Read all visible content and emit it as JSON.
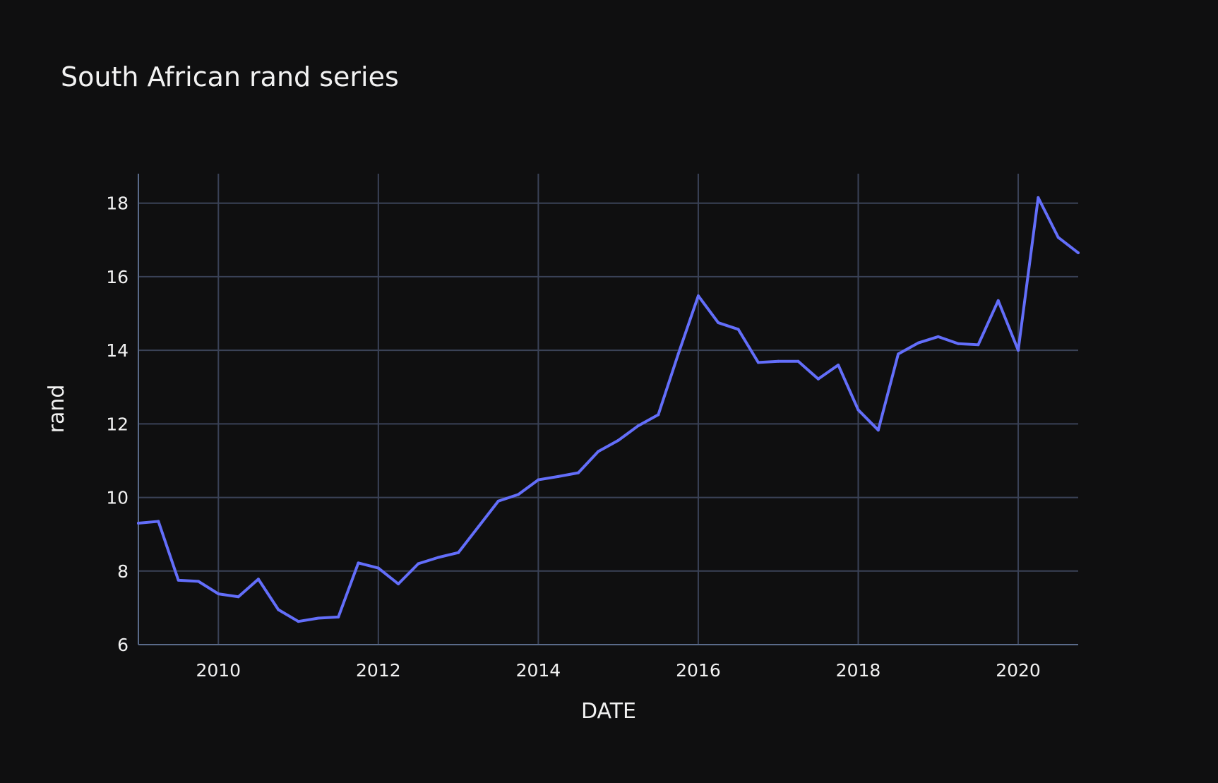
{
  "chart_data": {
    "type": "line",
    "title": "South African rand series",
    "xlabel": "DATE",
    "ylabel": "rand",
    "xlim": [
      2009.0,
      2020.75
    ],
    "ylim": [
      6,
      18.8
    ],
    "x_ticks": [
      2010,
      2012,
      2014,
      2016,
      2018,
      2020
    ],
    "y_ticks": [
      6,
      8,
      10,
      12,
      14,
      16,
      18
    ],
    "grid": true,
    "series": [
      {
        "name": "rand",
        "color": "#636efa",
        "x": [
          2009.0,
          2009.25,
          2009.5,
          2009.75,
          2010.0,
          2010.25,
          2010.5,
          2010.75,
          2011.0,
          2011.25,
          2011.5,
          2011.75,
          2012.0,
          2012.25,
          2012.5,
          2012.75,
          2013.0,
          2013.25,
          2013.5,
          2013.75,
          2014.0,
          2014.25,
          2014.5,
          2014.75,
          2015.0,
          2015.25,
          2015.5,
          2015.75,
          2016.0,
          2016.25,
          2016.5,
          2016.75,
          2017.0,
          2017.25,
          2017.5,
          2017.75,
          2018.0,
          2018.25,
          2018.5,
          2018.75,
          2019.0,
          2019.25,
          2019.5,
          2019.75,
          2020.0,
          2020.25,
          2020.5,
          2020.75
        ],
        "values": [
          9.3,
          9.35,
          7.75,
          7.72,
          7.38,
          7.3,
          7.78,
          6.95,
          6.63,
          6.72,
          6.75,
          8.22,
          8.08,
          7.65,
          8.2,
          8.37,
          8.5,
          9.2,
          9.9,
          10.08,
          10.48,
          10.57,
          10.67,
          11.25,
          11.55,
          11.95,
          12.25,
          13.9,
          15.48,
          14.75,
          14.57,
          13.67,
          13.7,
          13.7,
          13.22,
          13.6,
          12.38,
          11.83,
          13.9,
          14.2,
          14.37,
          14.18,
          14.15,
          15.35,
          14.0,
          18.15,
          17.07,
          16.65
        ]
      }
    ]
  }
}
